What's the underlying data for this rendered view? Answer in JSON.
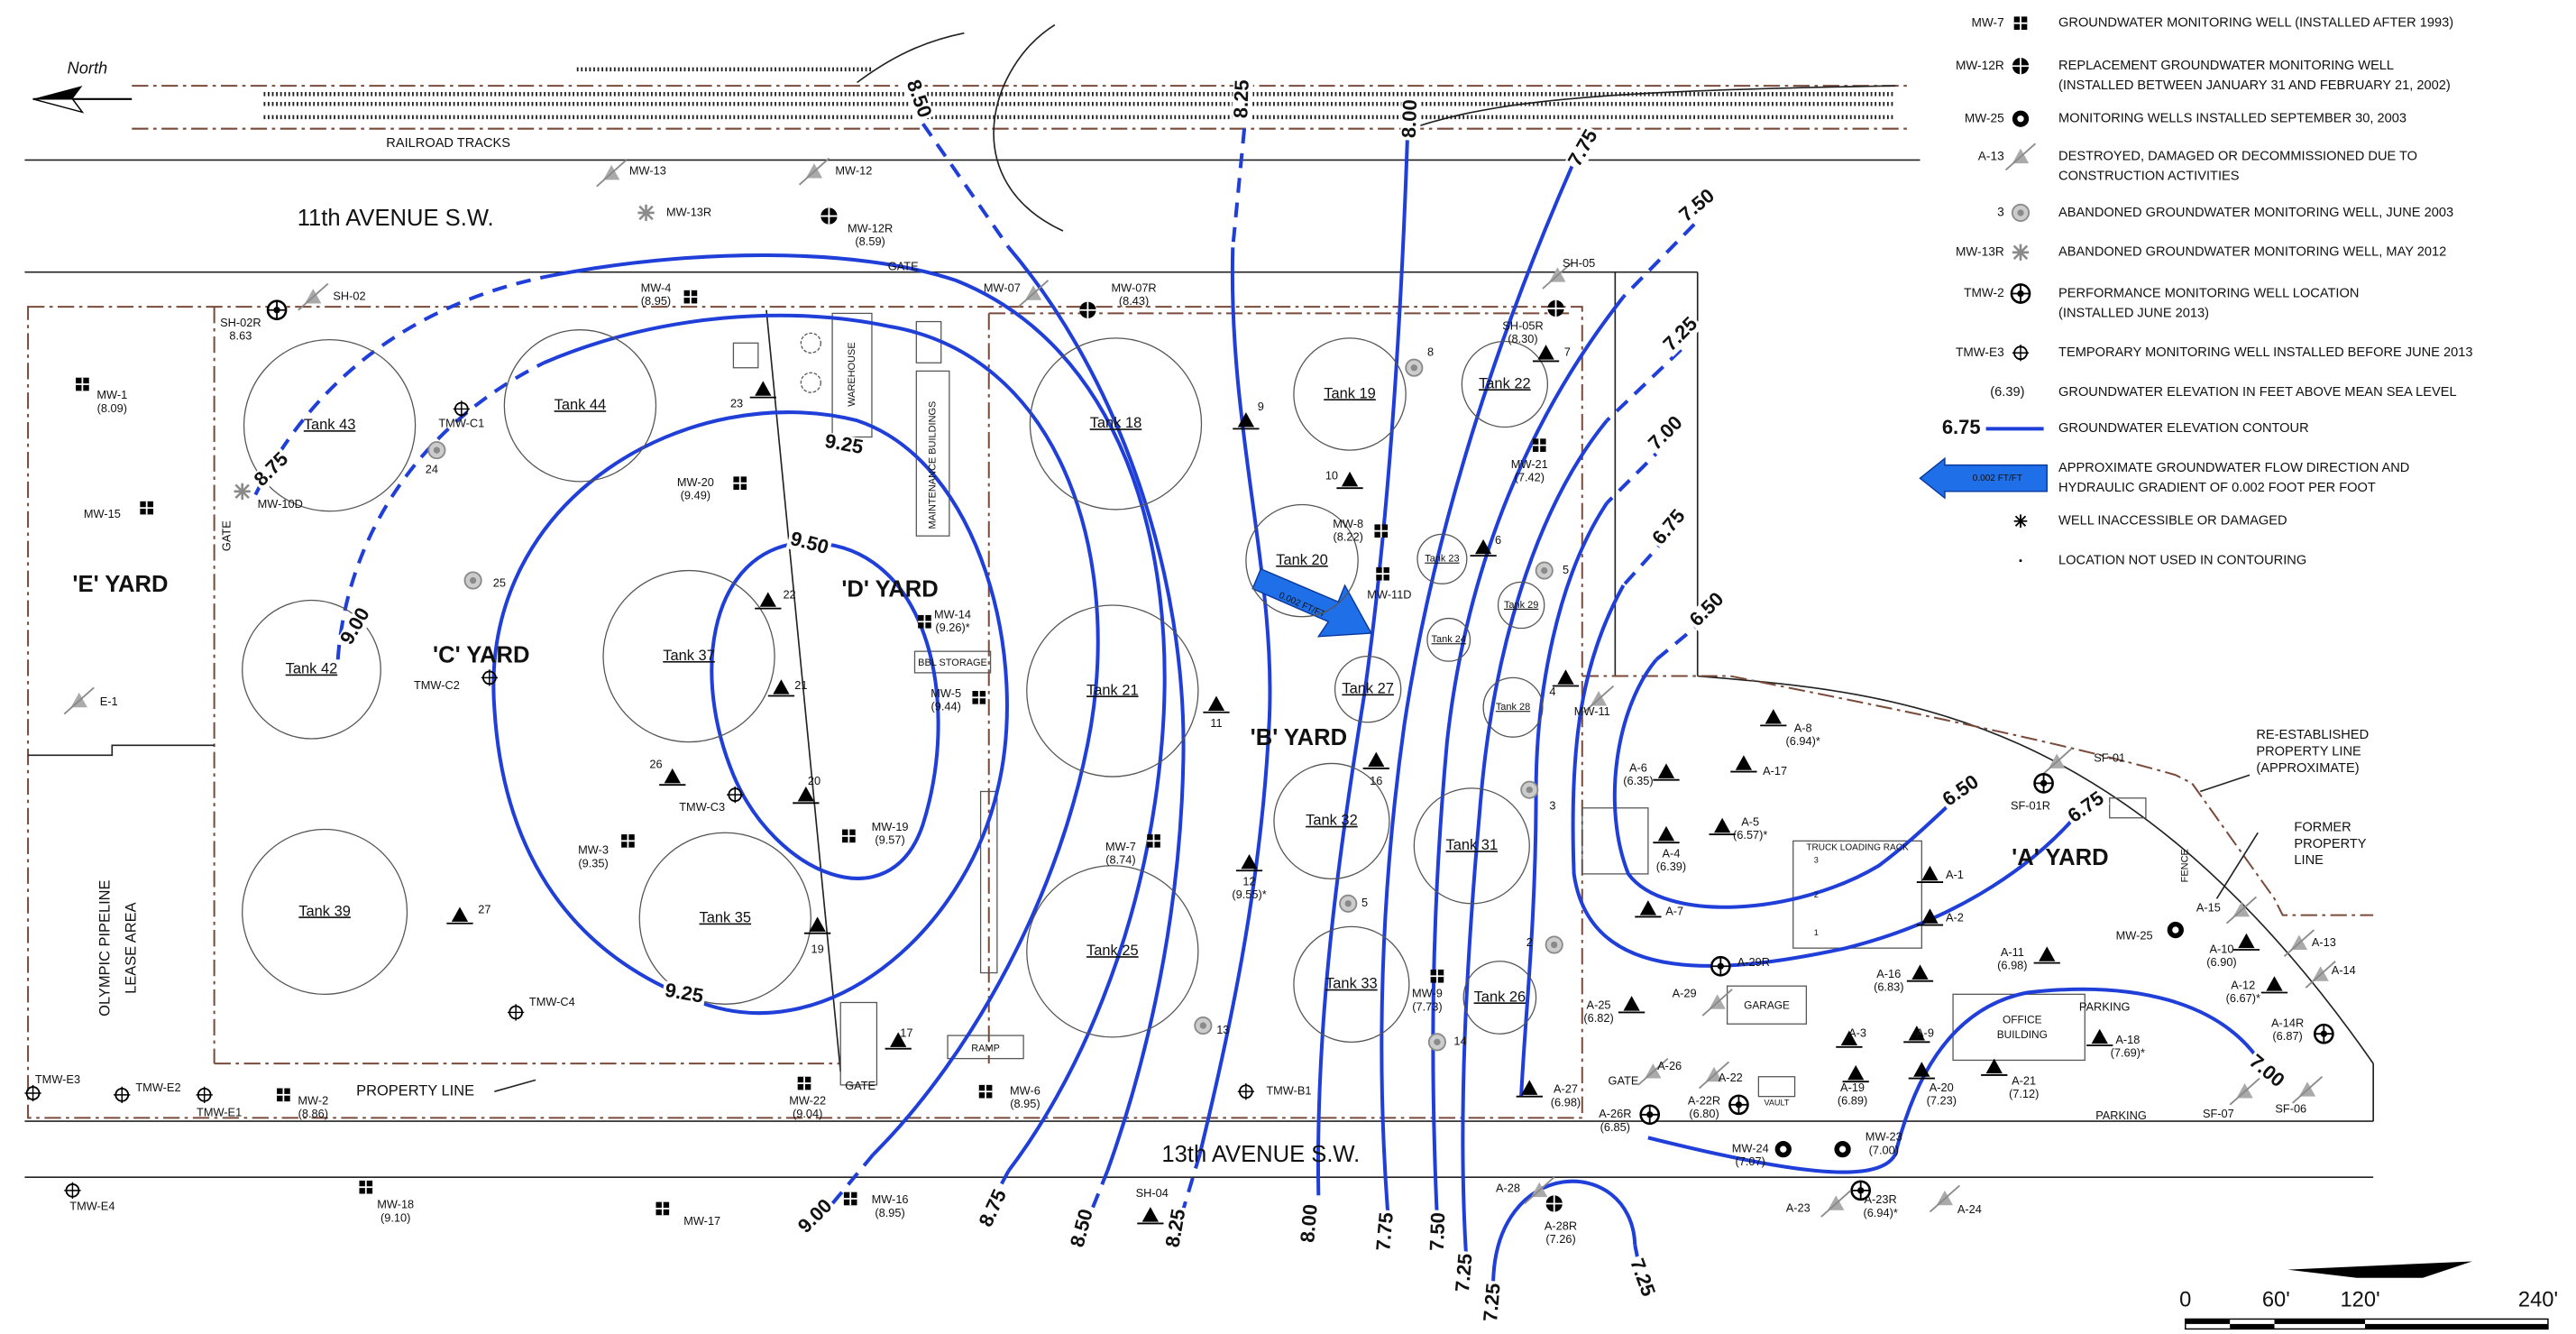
{
  "north": "North",
  "site_labels": [
    "RAILROAD TRACKS",
    "11th  AVENUE  S.W.",
    "13th  AVENUE  S.W.",
    "GATE",
    "GATE",
    "GATE",
    "GATE",
    "PROPERTY LINE",
    "'E' YARD",
    "'C' YARD",
    "'D' YARD",
    "'B' YARD",
    "'A' YARD",
    "OLYMPIC PIPELINE",
    "LEASE AREA",
    "WAREHOUSE",
    "MAINTENANCE BUILDINGS",
    "BBL STORAGE",
    "RAMP",
    "TRUCK LOADING RACK",
    "GARAGE",
    "OFFICE",
    "BUILDING",
    "VAULT",
    "PARKING",
    "PARKING",
    "FENCE",
    "RE-ESTABLISHED",
    "PROPERTY LINE",
    "(APPROXIMATE)",
    "FORMER",
    "PROPERTY",
    "LINE",
    "0.002 FT/FT",
    "3",
    "2",
    "1"
  ],
  "tanks": [
    "Tank 43",
    "Tank 44",
    "Tank 42",
    "Tank 37",
    "Tank 39",
    "Tank 35",
    "Tank 18",
    "Tank 21",
    "Tank 25",
    "Tank 19",
    "Tank 20",
    "Tank 22",
    "Tank 23",
    "Tank 24",
    "Tank 29",
    "Tank 27",
    "Tank 28",
    "Tank 32",
    "Tank 31",
    "Tank 33",
    "Tank 26"
  ],
  "contour_labels": [
    "8.50",
    "8.25",
    "8.00",
    "7.75",
    "7.50",
    "7.25",
    "7.00",
    "6.75",
    "6.50",
    "8.75",
    "9.25",
    "9.50",
    "9.00",
    "9.25",
    "6.50",
    "6.75",
    "7.00",
    "9.00",
    "8.75",
    "8.50",
    "8.25",
    "8.00",
    "7.75",
    "7.50",
    "7.25",
    "7.25",
    "7.25"
  ],
  "wells": [
    {
      "label": "MW-1",
      "elevation": "(8.09)"
    },
    {
      "label": "MW-15"
    },
    {
      "label": "SH-02R",
      "elevation": "8.63"
    },
    {
      "label": "SH-02"
    },
    {
      "label": "MW-4",
      "elevation": "(8.95)"
    },
    {
      "label": "TMW-C1"
    },
    {
      "label": "24"
    },
    {
      "label": "MW-10D"
    },
    {
      "label": "MW-20",
      "elevation": "(9.49)"
    },
    {
      "label": "25"
    },
    {
      "label": "TMW-C2"
    },
    {
      "label": "22"
    },
    {
      "label": "23"
    },
    {
      "label": "21"
    },
    {
      "label": "20"
    },
    {
      "label": "26"
    },
    {
      "label": "19"
    },
    {
      "label": "27"
    },
    {
      "label": "17"
    },
    {
      "label": "TMW-C3"
    },
    {
      "label": "MW-3",
      "elevation": "(9.35)"
    },
    {
      "label": "TMW-C4"
    },
    {
      "label": "MW-19",
      "elevation": "(9.57)"
    },
    {
      "label": "MW-14",
      "elevation": "(9.26)*"
    },
    {
      "label": "MW-5",
      "elevation": "(9.44)"
    },
    {
      "label": "MW-13"
    },
    {
      "label": "MW-12"
    },
    {
      "label": "MW-13R"
    },
    {
      "label": "MW-12R",
      "elevation": "(8.59)"
    },
    {
      "label": "MW-07"
    },
    {
      "label": "MW-07R",
      "elevation": "(8.43)"
    },
    {
      "label": "9"
    },
    {
      "label": "8"
    },
    {
      "label": "10"
    },
    {
      "label": "MW-8",
      "elevation": "(8.22)"
    },
    {
      "label": "MW-11D"
    },
    {
      "label": "6"
    },
    {
      "label": "5"
    },
    {
      "label": "7"
    },
    {
      "label": "SH-05"
    },
    {
      "label": "SH-05R",
      "elevation": "(8.30)"
    },
    {
      "label": "MW-21",
      "elevation": "(7.42)"
    },
    {
      "label": "11"
    },
    {
      "label": "16"
    },
    {
      "label": "4"
    },
    {
      "label": "MW-11"
    },
    {
      "label": "3"
    },
    {
      "label": "MW-7",
      "elevation": "(8.74)"
    },
    {
      "label": "12",
      "elevation": "(9.55)*"
    },
    {
      "label": "5"
    },
    {
      "label": "2"
    },
    {
      "label": "14"
    },
    {
      "label": "13"
    },
    {
      "label": "MW-9",
      "elevation": "(7.73)"
    },
    {
      "label": "MW-6",
      "elevation": "(8.95)"
    },
    {
      "label": "TMW-B1"
    },
    {
      "label": "MW-22",
      "elevation": "(9.04)"
    },
    {
      "label": "MW-2",
      "elevation": "(8.86)"
    },
    {
      "label": "TMW-E3"
    },
    {
      "label": "TMW-E2"
    },
    {
      "label": "TMW-E1"
    },
    {
      "label": "TMW-E4"
    },
    {
      "label": "MW-18",
      "elevation": "(9.10)"
    },
    {
      "label": "MW-17"
    },
    {
      "label": "MW-16",
      "elevation": "(8.95)"
    },
    {
      "label": "SH-04"
    },
    {
      "label": "A-28"
    },
    {
      "label": "A-28R",
      "elevation": "(7.26)"
    },
    {
      "label": "E-1"
    },
    {
      "label": "A-6",
      "elevation": "(6.35)"
    },
    {
      "label": "A-8",
      "elevation": "(6.94)*"
    },
    {
      "label": "A-17"
    },
    {
      "label": "A-5",
      "elevation": "(6.57)*"
    },
    {
      "label": "A-4",
      "elevation": "(6.39)"
    },
    {
      "label": "A-7"
    },
    {
      "label": "A-1"
    },
    {
      "label": "A-2"
    },
    {
      "label": "SF-01"
    },
    {
      "label": "SF-01R"
    },
    {
      "label": "A-29R"
    },
    {
      "label": "A-29"
    },
    {
      "label": "A-25",
      "elevation": "(6.82)"
    },
    {
      "label": "A-16",
      "elevation": "(6.83)"
    },
    {
      "label": "A-11",
      "elevation": "(6.98)"
    },
    {
      "label": "MW-25"
    },
    {
      "label": "A-15"
    },
    {
      "label": "A-13"
    },
    {
      "label": "A-10",
      "elevation": "(6.90)"
    },
    {
      "label": "A-14"
    },
    {
      "label": "A-12",
      "elevation": "(6.67)*"
    },
    {
      "label": "A-14R",
      "elevation": "(6.87)"
    },
    {
      "label": "A-18",
      "elevation": "(7.69)*"
    },
    {
      "label": "A-3"
    },
    {
      "label": "A-9"
    },
    {
      "label": "A-19",
      "elevation": "(6.89)"
    },
    {
      "label": "A-20",
      "elevation": "(7.23)"
    },
    {
      "label": "A-21",
      "elevation": "(7.12)"
    },
    {
      "label": "A-27",
      "elevation": "(6.98)"
    },
    {
      "label": "A-26"
    },
    {
      "label": "A-26R",
      "elevation": "(6.85)"
    },
    {
      "label": "A-22"
    },
    {
      "label": "A-22R",
      "elevation": "(6.80)"
    },
    {
      "label": "SF-07"
    },
    {
      "label": "SF-06"
    },
    {
      "label": "MW-24",
      "elevation": "(7.07)"
    },
    {
      "label": "MW-23",
      "elevation": "(7.00)"
    },
    {
      "label": "A-23R",
      "elevation": "(6.94)*"
    },
    {
      "label": "A-23"
    },
    {
      "label": "A-24"
    }
  ],
  "legend": [
    {
      "key": "MW-7",
      "text": [
        "GROUNDWATER MONITORING WELL (INSTALLED AFTER 1993)"
      ]
    },
    {
      "key": "MW-12R",
      "text": [
        "REPLACEMENT GROUNDWATER MONITORING WELL",
        "(INSTALLED BETWEEN JANUARY 31 AND FEBRUARY 21, 2002)"
      ]
    },
    {
      "key": "MW-25",
      "text": [
        "MONITORING WELLS INSTALLED SEPTEMBER 30, 2003"
      ]
    },
    {
      "key": "A-13",
      "text": [
        "DESTROYED, DAMAGED OR DECOMMISSIONED DUE TO",
        "CONSTRUCTION ACTIVITIES"
      ]
    },
    {
      "key": "3",
      "text": [
        "ABANDONED GROUNDWATER MONITORING WELL, JUNE 2003"
      ]
    },
    {
      "key": "MW-13R",
      "text": [
        "ABANDONED GROUNDWATER MONITORING WELL, MAY 2012"
      ]
    },
    {
      "key": "TMW-2",
      "text": [
        "PERFORMANCE MONITORING WELL LOCATION",
        "(INSTALLED JUNE 2013)"
      ]
    },
    {
      "key": "TMW-E3",
      "text": [
        "TEMPORARY MONITORING WELL INSTALLED BEFORE JUNE 2013"
      ]
    },
    {
      "key": "(6.39)",
      "text": [
        "GROUNDWATER ELEVATION IN FEET ABOVE MEAN SEA LEVEL"
      ]
    },
    {
      "key": "6.75",
      "text": [
        "GROUNDWATER ELEVATION CONTOUR"
      ]
    },
    {
      "key": "0.002 FT/FT",
      "text": [
        "APPROXIMATE GROUNDWATER FLOW DIRECTION AND",
        "HYDRAULIC GRADIENT OF 0.002 FOOT PER FOOT"
      ]
    },
    {
      "text": [
        "WELL INACCESSIBLE OR DAMAGED"
      ]
    },
    {
      "text": [
        "LOCATION NOT USED IN CONTOURING"
      ]
    }
  ],
  "scale": [
    "0",
    "60'",
    "120'",
    "240'"
  ]
}
